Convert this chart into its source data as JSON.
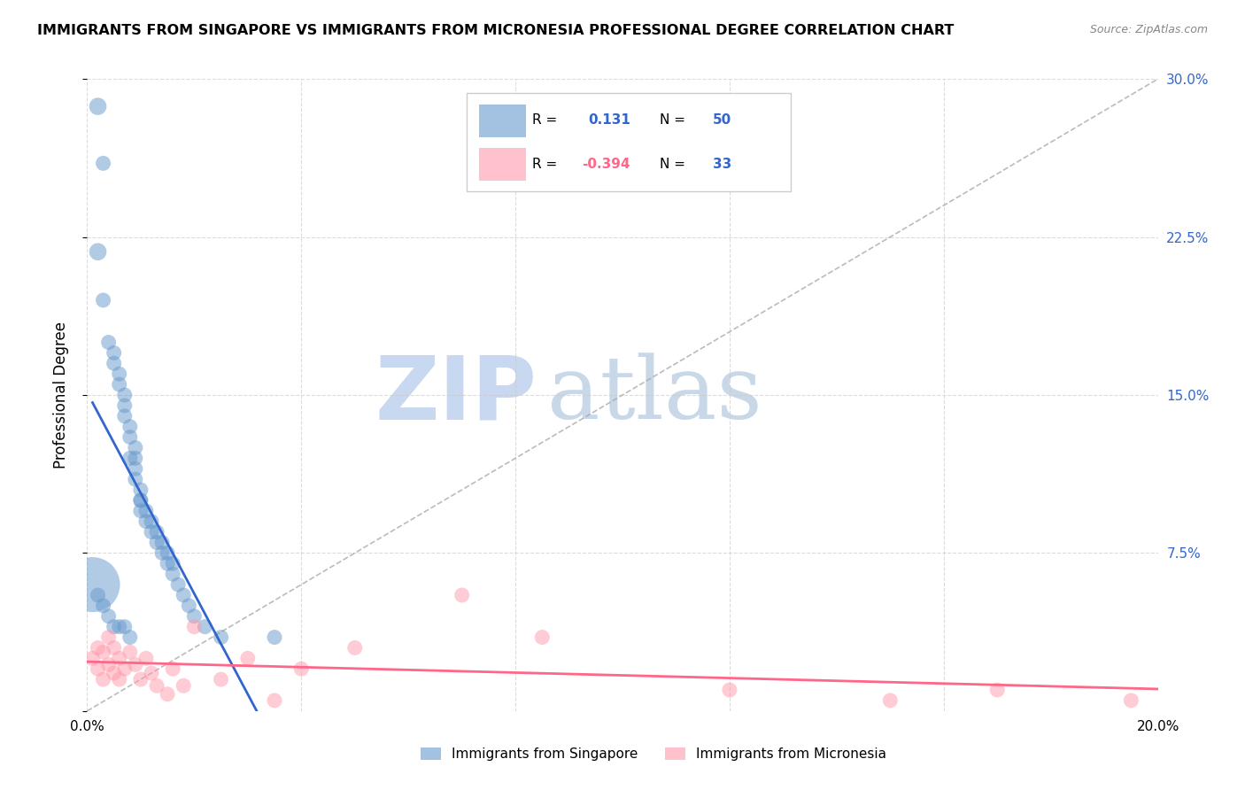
{
  "title": "IMMIGRANTS FROM SINGAPORE VS IMMIGRANTS FROM MICRONESIA PROFESSIONAL DEGREE CORRELATION CHART",
  "source": "Source: ZipAtlas.com",
  "ylabel": "Professional Degree",
  "xlim": [
    0.0,
    0.2
  ],
  "ylim": [
    0.0,
    0.3
  ],
  "ytick_right": [
    0.0,
    0.075,
    0.15,
    0.225,
    0.3
  ],
  "ytick_right_labels": [
    "",
    "7.5%",
    "15.0%",
    "22.5%",
    "30.0%"
  ],
  "singapore_color": "#6699cc",
  "micronesia_color": "#ff99aa",
  "singapore_line_color": "#3366cc",
  "micronesia_line_color": "#ff6688",
  "diagonal_color": "#aaaaaa",
  "background_color": "#ffffff",
  "watermark_zip": "ZIP",
  "watermark_atlas": "atlas",
  "watermark_color_zip": "#c8d8f0",
  "watermark_color_atlas": "#c8d8e8",
  "singapore_x": [
    0.002,
    0.002,
    0.003,
    0.004,
    0.005,
    0.005,
    0.006,
    0.006,
    0.007,
    0.007,
    0.007,
    0.008,
    0.008,
    0.008,
    0.009,
    0.009,
    0.009,
    0.009,
    0.01,
    0.01,
    0.01,
    0.01,
    0.011,
    0.011,
    0.012,
    0.012,
    0.013,
    0.013,
    0.014,
    0.014,
    0.015,
    0.015,
    0.016,
    0.016,
    0.017,
    0.018,
    0.019,
    0.02,
    0.022,
    0.025,
    0.001,
    0.002,
    0.003,
    0.004,
    0.005,
    0.006,
    0.007,
    0.008,
    0.035,
    0.003
  ],
  "singapore_y": [
    0.287,
    0.218,
    0.195,
    0.175,
    0.17,
    0.165,
    0.155,
    0.16,
    0.14,
    0.145,
    0.15,
    0.13,
    0.135,
    0.12,
    0.125,
    0.115,
    0.11,
    0.12,
    0.1,
    0.105,
    0.1,
    0.095,
    0.09,
    0.095,
    0.085,
    0.09,
    0.08,
    0.085,
    0.075,
    0.08,
    0.07,
    0.075,
    0.065,
    0.07,
    0.06,
    0.055,
    0.05,
    0.045,
    0.04,
    0.035,
    0.06,
    0.055,
    0.05,
    0.045,
    0.04,
    0.04,
    0.04,
    0.035,
    0.035,
    0.26
  ],
  "singapore_sizes": [
    200,
    200,
    150,
    150,
    150,
    150,
    150,
    150,
    150,
    150,
    150,
    150,
    150,
    150,
    150,
    150,
    150,
    150,
    150,
    150,
    150,
    150,
    150,
    150,
    150,
    150,
    150,
    150,
    150,
    150,
    150,
    150,
    150,
    150,
    150,
    150,
    150,
    150,
    150,
    150,
    2000,
    150,
    150,
    150,
    150,
    150,
    150,
    150,
    150,
    150
  ],
  "micronesia_x": [
    0.001,
    0.002,
    0.002,
    0.003,
    0.003,
    0.004,
    0.004,
    0.005,
    0.005,
    0.006,
    0.006,
    0.007,
    0.008,
    0.009,
    0.01,
    0.011,
    0.012,
    0.013,
    0.015,
    0.016,
    0.018,
    0.02,
    0.025,
    0.03,
    0.035,
    0.04,
    0.05,
    0.07,
    0.085,
    0.12,
    0.15,
    0.17,
    0.195
  ],
  "micronesia_y": [
    0.025,
    0.03,
    0.02,
    0.028,
    0.015,
    0.035,
    0.022,
    0.03,
    0.018,
    0.025,
    0.015,
    0.02,
    0.028,
    0.022,
    0.015,
    0.025,
    0.018,
    0.012,
    0.008,
    0.02,
    0.012,
    0.04,
    0.015,
    0.025,
    0.005,
    0.02,
    0.03,
    0.055,
    0.035,
    0.01,
    0.005,
    0.01,
    0.005
  ],
  "micronesia_sizes": [
    150,
    150,
    150,
    150,
    150,
    150,
    150,
    150,
    150,
    150,
    150,
    150,
    150,
    150,
    150,
    150,
    150,
    150,
    150,
    150,
    150,
    150,
    150,
    150,
    150,
    150,
    150,
    150,
    150,
    150,
    150,
    150,
    150
  ]
}
